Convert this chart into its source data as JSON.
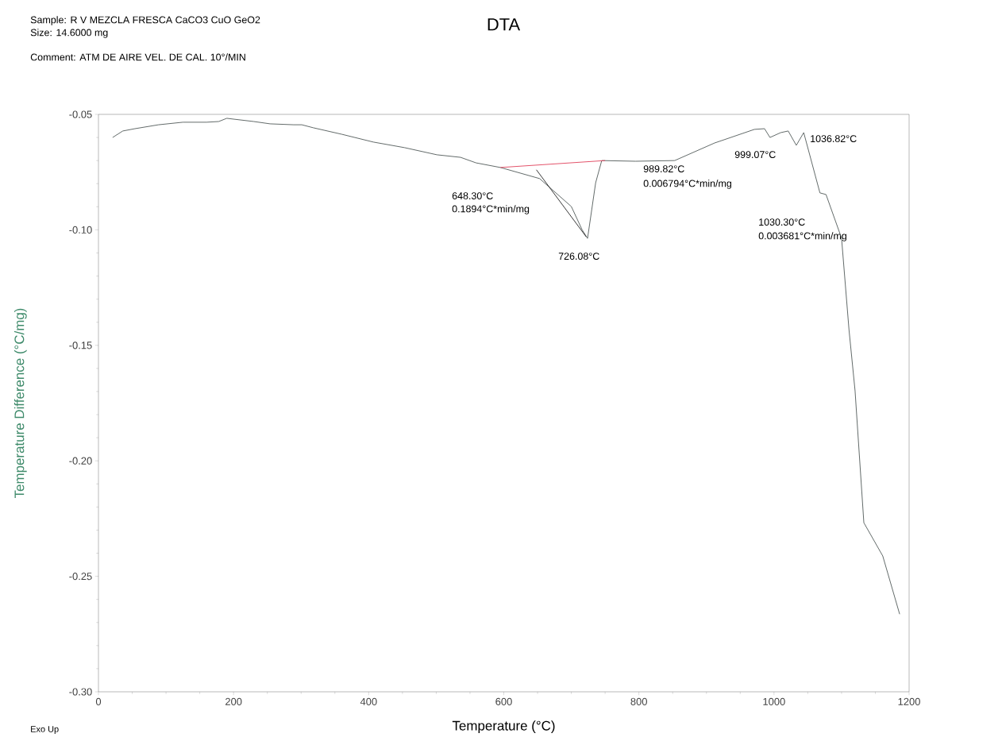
{
  "chart_data": {
    "type": "line",
    "title": "DTA",
    "xlabel": "Temperature (°C)",
    "ylabel": "Temperature Difference (°C/mg)",
    "xlim": [
      0,
      1200
    ],
    "xticks": [
      0,
      200,
      400,
      600,
      800,
      1000,
      1200
    ],
    "ylim": [
      -0.3,
      -0.05
    ],
    "yticks": [
      {
        "value": -0.3,
        "label": "-0.30"
      },
      {
        "value": -0.25,
        "label": "-0.25"
      },
      {
        "value": -0.2,
        "label": "-0.20"
      },
      {
        "value": -0.15,
        "label": "-0.15"
      },
      {
        "value": -0.1,
        "label": "-0.10"
      },
      {
        "value": -0.05,
        "label": "-0.05"
      }
    ],
    "grid": false,
    "marker": "none",
    "line_style": "solid",
    "series": [
      {
        "color": "#505a58",
        "x": [
          21,
          36,
          54,
          89,
          125,
          160,
          178,
          190,
          201,
          230,
          254,
          289,
          301,
          318,
          360,
          407,
          453,
          501,
          536,
          559,
          595,
          653,
          700,
          716,
          724,
          736,
          745,
          795,
          853,
          912,
          971,
          986,
          994,
          1010,
          1021,
          1033,
          1044,
          1068,
          1077,
          1100,
          1111,
          1120,
          1133,
          1161,
          1186
        ],
        "values": [
          -0.06,
          -0.0572,
          -0.0562,
          -0.0545,
          -0.0534,
          -0.0534,
          -0.0531,
          -0.0517,
          -0.0521,
          -0.0531,
          -0.0541,
          -0.0545,
          -0.0545,
          -0.0558,
          -0.0586,
          -0.062,
          -0.0644,
          -0.0675,
          -0.0686,
          -0.071,
          -0.073,
          -0.0778,
          -0.0899,
          -0.1,
          -0.1037,
          -0.0796,
          -0.07,
          -0.0703,
          -0.07,
          -0.0624,
          -0.0565,
          -0.0562,
          -0.06,
          -0.0579,
          -0.0572,
          -0.0634,
          -0.0579,
          -0.084,
          -0.0847,
          -0.1036,
          -0.1432,
          -0.1697,
          -0.2268,
          -0.2412,
          -0.2664
        ]
      },
      {
        "color": "#e0405a",
        "x": [
          595,
          750
        ],
        "values": [
          -0.073,
          -0.07
        ]
      },
      {
        "color": "#202020",
        "x": [
          648.3,
          722
        ],
        "values": [
          -0.074,
          -0.103
        ]
      }
    ],
    "annotations": [
      "Sample: R V MEZCLA FRESCA CaCO3 CuO GeO2",
      "Size:  14.6000 mg",
      "Comment: ATM DE AIRE  VEL. DE CAL. 10°/MIN",
      "Exo Up",
      "648.30°C",
      "0.1894°C*min/mg",
      "726.08°C",
      "989.82°C",
      "0.006794°C*min/mg",
      "999.07°C",
      "1036.82°C",
      "1030.30°C",
      "0.003681°C*min/mg"
    ]
  }
}
